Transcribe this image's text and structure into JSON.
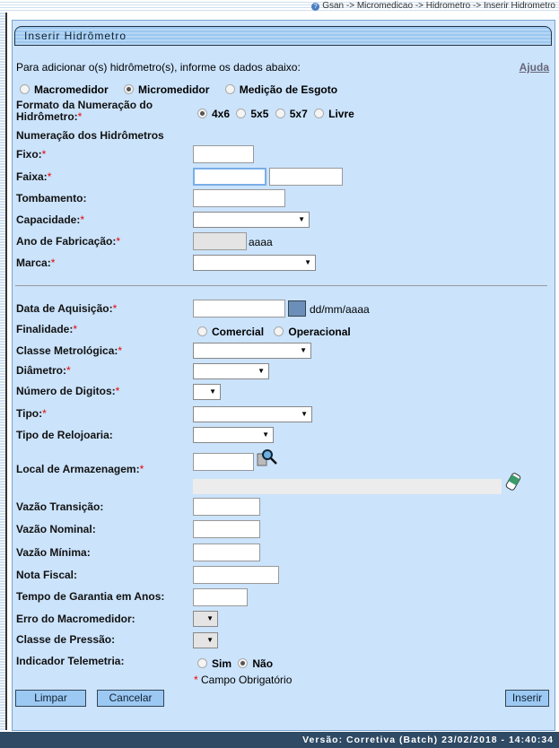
{
  "breadcrumb": "Gsan -> Micromedicao -> Hidrometro -> Inserir Hidrometro",
  "title": "Inserir Hidrômetro",
  "intro": "Para adicionar o(s) hidrômetro(s), informe os dados abaixo:",
  "help": "Ajuda",
  "tipo_medidor": {
    "options": [
      "Macromedidor",
      "Micromedidor",
      "Medição de Esgoto"
    ],
    "selected": "Micromedidor"
  },
  "formato": {
    "label": "Formato da Numeração do Hidrômetro:",
    "options": [
      "4x6",
      "5x5",
      "5x7",
      "Livre"
    ],
    "selected": "4x6"
  },
  "section_numeracao": "Numeração dos Hidrômetros",
  "labels": {
    "fixo": "Fixo:",
    "faixa": "Faixa:",
    "tombamento": "Tombamento:",
    "capacidade": "Capacidade:",
    "ano": "Ano de Fabricação:",
    "marca": "Marca:",
    "data_aquisicao": "Data de Aquisição:",
    "finalidade": "Finalidade:",
    "classe_metrologica": "Classe Metrológica:",
    "diametro": "Diâmetro:",
    "numero_digitos": "Número de Digitos:",
    "tipo": "Tipo:",
    "tipo_relojoaria": "Tipo de Relojoaria:",
    "local_armazenagem": "Local de Armazenagem:",
    "vazao_transicao": "Vazão Transição:",
    "vazao_nominal": "Vazão Nominal:",
    "vazao_minima": "Vazão Mínima:",
    "nota_fiscal": "Nota Fiscal:",
    "tempo_garantia": "Tempo de Garantia em Anos:",
    "erro_macromedidor": "Erro do Macromedidor:",
    "classe_pressao": "Classe de Pressão:",
    "indicador_telemetria": "Indicador Telemetria:"
  },
  "hints": {
    "ano": "aaaa",
    "data": "dd/mm/aaaa"
  },
  "finalidade": {
    "options": [
      "Comercial",
      "Operacional"
    ],
    "selected": null
  },
  "telemetria": {
    "options": [
      "Sim",
      "Não"
    ],
    "selected": "Não"
  },
  "required_note": "Campo Obrigatório",
  "buttons": {
    "limpar": "Limpar",
    "cancelar": "Cancelar",
    "inserir": "Inserir"
  },
  "footer": "Versão: Corretiva (Batch) 23/02/2018 - 14:40:34"
}
